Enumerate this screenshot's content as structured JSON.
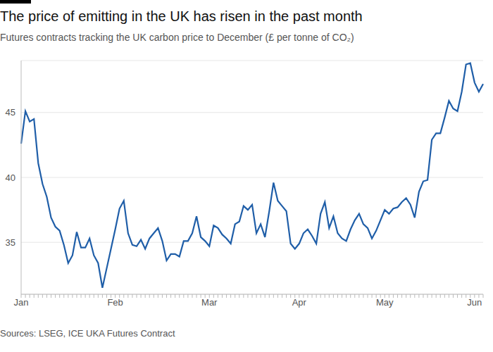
{
  "chart_data": {
    "type": "line",
    "title": "The price of emitting in the UK has risen in the past month",
    "subtitle": "Futures contracts tracking the UK carbon price to December (£ per tonne of CO₂)",
    "source": "Sources: LSEG, ICE UKA Futures Contract",
    "categories": [
      "Jan",
      null,
      null,
      null,
      null,
      null,
      null,
      null,
      null,
      null,
      null,
      null,
      null,
      null,
      null,
      null,
      null,
      null,
      null,
      null,
      null,
      null,
      "Feb",
      null,
      null,
      null,
      null,
      null,
      null,
      null,
      null,
      null,
      null,
      null,
      null,
      null,
      null,
      null,
      null,
      null,
      null,
      null,
      null,
      null,
      "Mar",
      null,
      null,
      null,
      null,
      null,
      null,
      null,
      null,
      null,
      null,
      null,
      null,
      null,
      null,
      null,
      null,
      null,
      null,
      null,
      null,
      "Apr",
      null,
      null,
      null,
      null,
      null,
      null,
      null,
      null,
      null,
      null,
      null,
      null,
      null,
      null,
      null,
      null,
      null,
      null,
      null,
      "May",
      null,
      null,
      null,
      null,
      null,
      null,
      null,
      null,
      null,
      null,
      null,
      null,
      null,
      null,
      null,
      null,
      null,
      null,
      null,
      null,
      "Jun",
      null,
      null
    ],
    "values": [
      42.6,
      45.1,
      44.3,
      44.5,
      41.1,
      39.5,
      38.5,
      36.9,
      36.2,
      35.9,
      34.8,
      33.4,
      34.0,
      35.8,
      34.6,
      34.6,
      35.3,
      34.0,
      33.4,
      31.5,
      33.0,
      34.5,
      36.0,
      37.6,
      38.2,
      35.7,
      34.8,
      34.7,
      35.2,
      34.5,
      35.3,
      35.7,
      36.1,
      35.1,
      33.6,
      34.1,
      34.1,
      33.9,
      35.1,
      35.1,
      35.7,
      37.0,
      35.4,
      35.1,
      34.7,
      36.3,
      36.1,
      35.6,
      35.3,
      34.9,
      36.4,
      36.6,
      37.8,
      37.5,
      37.9,
      35.7,
      36.4,
      35.4,
      37.4,
      39.6,
      38.2,
      37.8,
      37.4,
      34.9,
      34.5,
      34.9,
      35.7,
      36.0,
      35.5,
      34.9,
      37.2,
      38.1,
      36.1,
      37.0,
      35.7,
      35.3,
      35.1,
      36.0,
      36.7,
      37.2,
      36.4,
      36.1,
      35.3,
      35.9,
      36.7,
      37.5,
      37.2,
      37.6,
      37.7,
      38.1,
      38.4,
      37.9,
      36.9,
      38.9,
      39.7,
      39.8,
      42.9,
      43.4,
      43.4,
      44.6,
      45.9,
      45.3,
      45.1,
      46.6,
      48.7,
      48.8,
      47.3,
      46.6,
      47.2
    ],
    "color": "#1f5ea8",
    "ylim": [
      31,
      49
    ],
    "yticks": [
      35,
      40,
      45
    ],
    "grid": true
  }
}
